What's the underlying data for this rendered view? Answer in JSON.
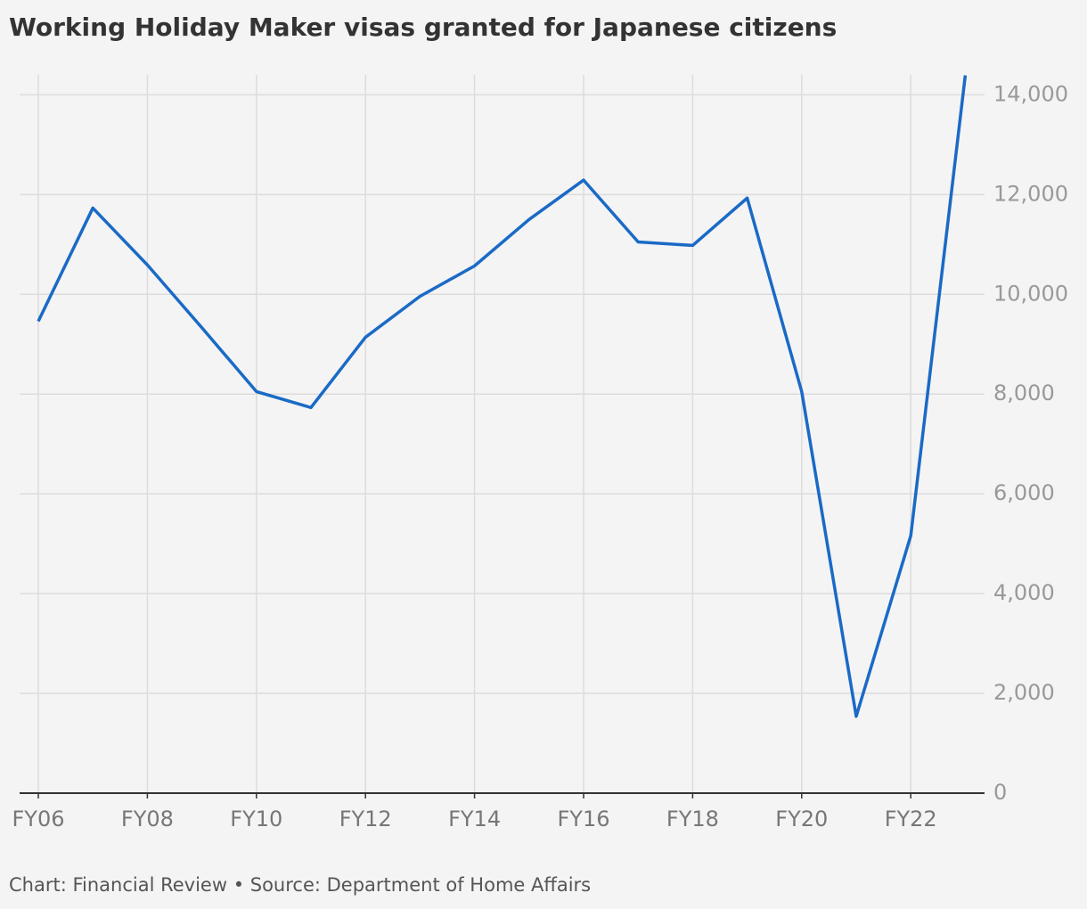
{
  "chart_data": {
    "type": "line",
    "title": "Working Holiday Maker visas granted for Japanese citizens",
    "source": "Chart: Financial Review • Source: Department of Home Affairs",
    "categories": [
      "FY06",
      null,
      "FY08",
      null,
      "FY10",
      null,
      "FY12",
      null,
      "FY14",
      null,
      "FY16",
      null,
      "FY18",
      null,
      "FY20",
      null,
      "FY22",
      null
    ],
    "values": [
      9460,
      11730,
      10590,
      9330,
      8050,
      7730,
      9140,
      9960,
      10570,
      11500,
      12290,
      11050,
      10980,
      11930,
      8050,
      1540,
      5160,
      14390
    ],
    "color": "#1a6ac6",
    "ylim": [
      0,
      14400
    ],
    "yticks": [
      0,
      {
        "value": 2000,
        "label": "2,000"
      },
      {
        "value": 4000,
        "label": "4,000"
      },
      {
        "value": 6000,
        "label": "6,000"
      },
      {
        "value": 8000,
        "label": "8,000"
      },
      {
        "value": 10000,
        "label": "10,000"
      },
      {
        "value": 12000,
        "label": "12,000"
      },
      {
        "value": 14000,
        "label": "14,000"
      }
    ],
    "grid": true
  }
}
